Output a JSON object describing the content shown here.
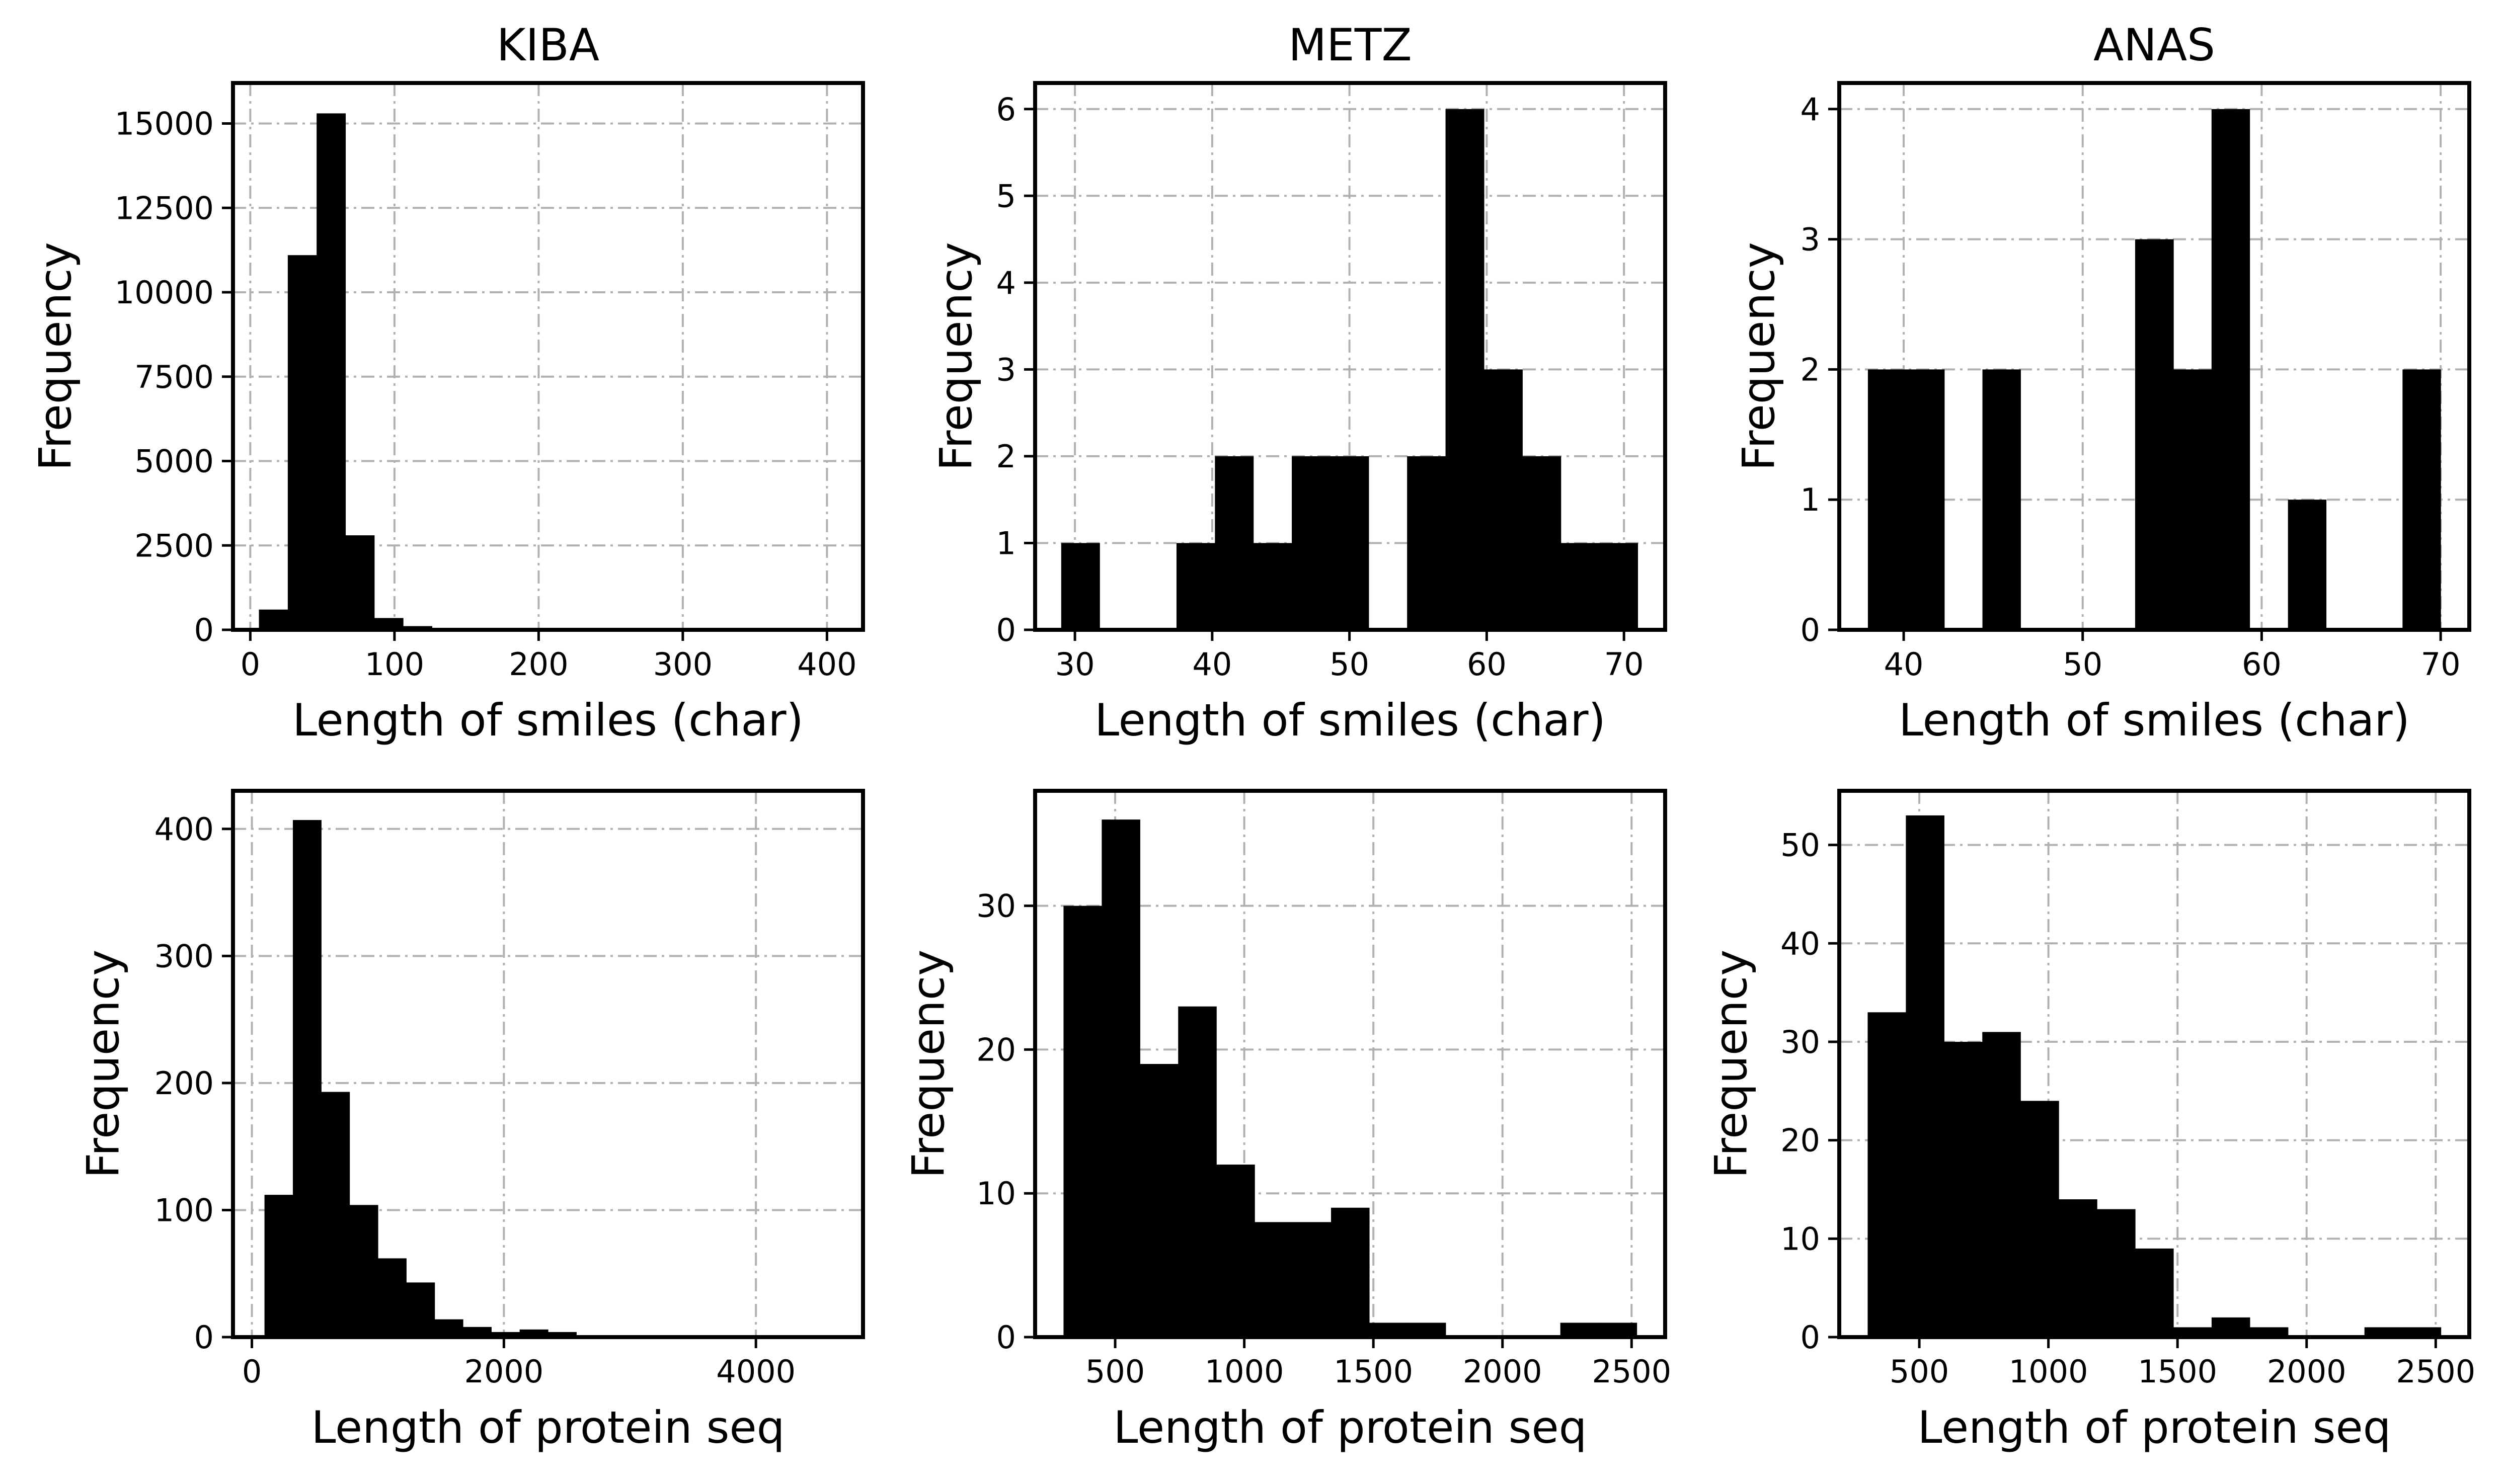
{
  "chart_data": [
    {
      "type": "bar",
      "title": "KIBA",
      "xlabel": "Length of smiles (char)",
      "ylabel": "Frequency",
      "xlim": [
        -12,
        425
      ],
      "ylim": [
        0,
        16200
      ],
      "xticks": [
        0,
        100,
        200,
        300,
        400
      ],
      "yticks": [
        0,
        2500,
        5000,
        7500,
        10000,
        12500,
        15000
      ],
      "grid": true,
      "bins": [
        [
          6,
          26,
          600
        ],
        [
          26,
          46,
          11100
        ],
        [
          46,
          66,
          15300
        ],
        [
          66,
          86,
          2800
        ],
        [
          86,
          106,
          350
        ],
        [
          106,
          126,
          110
        ],
        [
          126,
          146,
          50
        ],
        [
          146,
          166,
          25
        ],
        [
          166,
          186,
          15
        ],
        [
          186,
          206,
          10
        ],
        [
          206,
          226,
          8
        ],
        [
          226,
          246,
          6
        ],
        [
          246,
          266,
          5
        ],
        [
          266,
          286,
          5
        ],
        [
          286,
          306,
          4
        ],
        [
          306,
          326,
          3
        ],
        [
          326,
          346,
          3
        ],
        [
          346,
          366,
          3
        ],
        [
          366,
          386,
          2
        ],
        [
          386,
          406,
          2
        ]
      ]
    },
    {
      "type": "bar",
      "title": "METZ",
      "xlabel": "Length of smiles (char)",
      "ylabel": "Frequency",
      "xlim": [
        27.1,
        73.0
      ],
      "ylim": [
        0,
        6.3
      ],
      "xticks": [
        30,
        40,
        50,
        60,
        70
      ],
      "yticks": [
        0,
        1,
        2,
        3,
        4,
        5,
        6
      ],
      "grid": true,
      "bins": [
        [
          29.0,
          31.8,
          1
        ],
        [
          31.8,
          34.6,
          0
        ],
        [
          34.6,
          37.4,
          0
        ],
        [
          37.4,
          40.2,
          1
        ],
        [
          40.2,
          43.0,
          2
        ],
        [
          43.0,
          45.8,
          1
        ],
        [
          45.8,
          48.6,
          2
        ],
        [
          48.6,
          51.4,
          2
        ],
        [
          51.4,
          54.2,
          0
        ],
        [
          54.2,
          57.0,
          2
        ],
        [
          57.0,
          59.8,
          6
        ],
        [
          59.8,
          62.6,
          3
        ],
        [
          62.6,
          65.4,
          2
        ],
        [
          65.4,
          68.2,
          1
        ],
        [
          68.2,
          71.0,
          1
        ]
      ]
    },
    {
      "type": "bar",
      "title": "ANAS",
      "xlabel": "Length of smiles (char)",
      "ylabel": "Frequency",
      "xlim": [
        36.4,
        71.6
      ],
      "ylim": [
        0,
        4.2
      ],
      "xticks": [
        40,
        50,
        60,
        70
      ],
      "yticks": [
        0,
        1,
        2,
        3,
        4
      ],
      "grid": true,
      "bins": [
        [
          38.0,
          40.13,
          2
        ],
        [
          40.13,
          42.27,
          2
        ],
        [
          42.27,
          44.4,
          0
        ],
        [
          44.4,
          46.53,
          2
        ],
        [
          46.53,
          48.67,
          0
        ],
        [
          48.67,
          50.8,
          0
        ],
        [
          50.8,
          52.93,
          0
        ],
        [
          52.93,
          55.07,
          3
        ],
        [
          55.07,
          57.2,
          2
        ],
        [
          57.2,
          59.33,
          4
        ],
        [
          59.33,
          61.47,
          0
        ],
        [
          61.47,
          63.6,
          1
        ],
        [
          63.6,
          65.73,
          0
        ],
        [
          65.73,
          67.87,
          0
        ],
        [
          67.87,
          70.0,
          2
        ]
      ]
    },
    {
      "type": "bar",
      "title": "",
      "xlabel": "Length of protein seq",
      "ylabel": "Frequency",
      "xlim": [
        -150,
        4850
      ],
      "ylim": [
        0,
        430
      ],
      "xticks": [
        0,
        2000,
        4000
      ],
      "yticks": [
        0,
        100,
        200,
        300,
        400
      ],
      "grid": true,
      "bins": [
        [
          100,
          325,
          112
        ],
        [
          325,
          550,
          407
        ],
        [
          550,
          775,
          193
        ],
        [
          775,
          1000,
          104
        ],
        [
          1000,
          1225,
          62
        ],
        [
          1225,
          1450,
          43
        ],
        [
          1450,
          1675,
          14
        ],
        [
          1675,
          1900,
          8
        ],
        [
          1900,
          2125,
          4
        ],
        [
          2125,
          2350,
          6
        ],
        [
          2350,
          2575,
          4
        ],
        [
          2575,
          2800,
          1
        ],
        [
          2800,
          3025,
          1
        ],
        [
          3025,
          3250,
          0
        ],
        [
          3250,
          3475,
          1
        ],
        [
          3475,
          3700,
          0
        ],
        [
          3700,
          3925,
          0
        ],
        [
          3925,
          4150,
          1
        ],
        [
          4150,
          4375,
          0
        ],
        [
          4375,
          4600,
          1
        ]
      ]
    },
    {
      "type": "bar",
      "title": "",
      "xlabel": "Length of protein seq",
      "ylabel": "Frequency",
      "xlim": [
        190,
        2630
      ],
      "ylim": [
        0,
        38
      ],
      "xticks": [
        500,
        1000,
        1500,
        2000,
        2500
      ],
      "yticks": [
        0,
        10,
        20,
        30
      ],
      "grid": true,
      "bins": [
        [
          300,
          448,
          30
        ],
        [
          448,
          596,
          36
        ],
        [
          596,
          744,
          19
        ],
        [
          744,
          892,
          23
        ],
        [
          892,
          1040,
          12
        ],
        [
          1040,
          1188,
          8
        ],
        [
          1188,
          1336,
          8
        ],
        [
          1336,
          1484,
          9
        ],
        [
          1484,
          1632,
          1
        ],
        [
          1632,
          1780,
          1
        ],
        [
          1780,
          1928,
          0
        ],
        [
          1928,
          2076,
          0
        ],
        [
          2076,
          2224,
          0
        ],
        [
          2224,
          2372,
          1
        ],
        [
          2372,
          2520,
          1
        ]
      ]
    },
    {
      "type": "bar",
      "title": "",
      "xlabel": "Length of protein seq",
      "ylabel": "Frequency",
      "xlim": [
        190,
        2630
      ],
      "ylim": [
        0,
        55.5
      ],
      "xticks": [
        500,
        1000,
        1500,
        2000,
        2500
      ],
      "yticks": [
        0,
        10,
        20,
        30,
        40,
        50
      ],
      "grid": true,
      "bins": [
        [
          300,
          448,
          33
        ],
        [
          448,
          596,
          53
        ],
        [
          596,
          744,
          30
        ],
        [
          744,
          892,
          31
        ],
        [
          892,
          1040,
          24
        ],
        [
          1040,
          1188,
          14
        ],
        [
          1188,
          1336,
          13
        ],
        [
          1336,
          1484,
          9
        ],
        [
          1484,
          1632,
          1
        ],
        [
          1632,
          1780,
          2
        ],
        [
          1780,
          1928,
          1
        ],
        [
          1928,
          2076,
          0
        ],
        [
          2076,
          2224,
          0
        ],
        [
          2224,
          2372,
          1
        ],
        [
          2372,
          2520,
          1
        ]
      ]
    }
  ]
}
